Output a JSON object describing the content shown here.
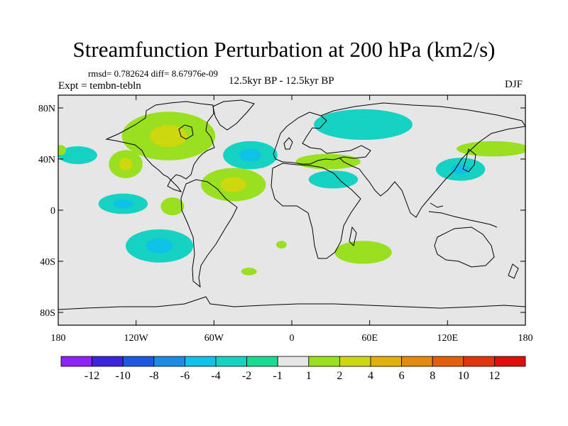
{
  "title": "Streamfunction Perturbation at 200 hPa (km2/s)",
  "stats": "rmsd= 0.782624 diff= 8.67976e-09",
  "experiment": "Expt = tembn-tebln",
  "period": "12.5kyr BP - 12.5kyr BP",
  "season": "DJF",
  "map": {
    "lat_range": [
      -90,
      90
    ],
    "lon_range": [
      -180,
      180
    ],
    "lat_ticks": [
      {
        "value": 80,
        "label": "80N"
      },
      {
        "value": 40,
        "label": "40N"
      },
      {
        "value": 0,
        "label": "0"
      },
      {
        "value": -40,
        "label": "40S"
      },
      {
        "value": -80,
        "label": "80S"
      }
    ],
    "lon_ticks": [
      {
        "value": -180,
        "label": "180"
      },
      {
        "value": -120,
        "label": "120W"
      },
      {
        "value": -60,
        "label": "60W"
      },
      {
        "value": 0,
        "label": "0"
      },
      {
        "value": 60,
        "label": "60E"
      },
      {
        "value": 120,
        "label": "120E"
      },
      {
        "value": 180,
        "label": "180"
      }
    ],
    "anomalies": [
      {
        "name": "north-america",
        "lon": -95,
        "lat": 58,
        "rlon": 36,
        "rlat": 19,
        "level": 2,
        "core_level": 4
      },
      {
        "name": "north-atlantic",
        "lon": -32,
        "lat": 43,
        "rlon": 21,
        "rlat": 11,
        "level": -2,
        "core_level": -4
      },
      {
        "name": "central-atlantic",
        "lon": -45,
        "lat": 20,
        "rlon": 25,
        "rlat": 13,
        "level": 2,
        "core_level": 4
      },
      {
        "name": "northeast-pacific",
        "lon": -165,
        "lat": 43,
        "rlon": 15,
        "rlat": 7,
        "level": -2
      },
      {
        "name": "eastern-pacific-north",
        "lon": -128,
        "lat": 36,
        "rlon": 13,
        "rlat": 11,
        "level": 2,
        "core_level": 4
      },
      {
        "name": "eastern-pacific-equator",
        "lon": -130,
        "lat": 5,
        "rlon": 19,
        "rlat": 8,
        "level": -2,
        "core_level": -4
      },
      {
        "name": "tropical-atlantic-east",
        "lon": -92,
        "lat": 3,
        "rlon": 9,
        "rlat": 7,
        "level": 2
      },
      {
        "name": "south-pacific",
        "lon": -102,
        "lat": -28,
        "rlon": 26,
        "rlat": 13,
        "level": -2,
        "core_level": -4
      },
      {
        "name": "south-atlantic-small",
        "lon": -8,
        "lat": -27,
        "rlon": 4,
        "rlat": 3,
        "level": 2
      },
      {
        "name": "south-atlantic-south",
        "lon": -33,
        "lat": -48,
        "rlon": 6,
        "rlat": 3,
        "level": 2
      },
      {
        "name": "siberia",
        "lon": 55,
        "lat": 67,
        "rlon": 38,
        "rlat": 12,
        "level": -2
      },
      {
        "name": "mediterranean",
        "lon": 28,
        "lat": 38,
        "rlon": 25,
        "rlat": 6,
        "level": 2
      },
      {
        "name": "north-africa",
        "lon": 32,
        "lat": 24,
        "rlon": 19,
        "rlat": 7,
        "level": -2
      },
      {
        "name": "east-asia",
        "lon": 130,
        "lat": 32,
        "rlon": 19,
        "rlat": 9,
        "level": -2,
        "core_level": -4
      },
      {
        "name": "north-pacific-west",
        "lon": 155,
        "lat": 48,
        "rlon": 28,
        "rlat": 6,
        "level": 2
      },
      {
        "name": "southern-africa",
        "lon": 55,
        "lat": -33,
        "rlon": 22,
        "rlat": 9,
        "level": 2
      },
      {
        "name": "west-europe-edge",
        "lon": -178,
        "lat": 47,
        "rlon": 4,
        "rlat": 4,
        "level": 2
      }
    ]
  },
  "colorbar": {
    "levels": [
      "-12",
      "-10",
      "-8",
      "-6",
      "-4",
      "-2",
      "-1",
      "1",
      "2",
      "4",
      "6",
      "8",
      "10",
      "12"
    ],
    "colors": [
      "#8b24f5",
      "#3b23e0",
      "#1d58e0",
      "#1a8ce6",
      "#0fc1e6",
      "#16d2c2",
      "#17db91",
      "#e6e6e6",
      "#99e020",
      "#cfd70e",
      "#e0b00e",
      "#e08a0e",
      "#e0600e",
      "#e0340e",
      "#e00e0e"
    ]
  }
}
